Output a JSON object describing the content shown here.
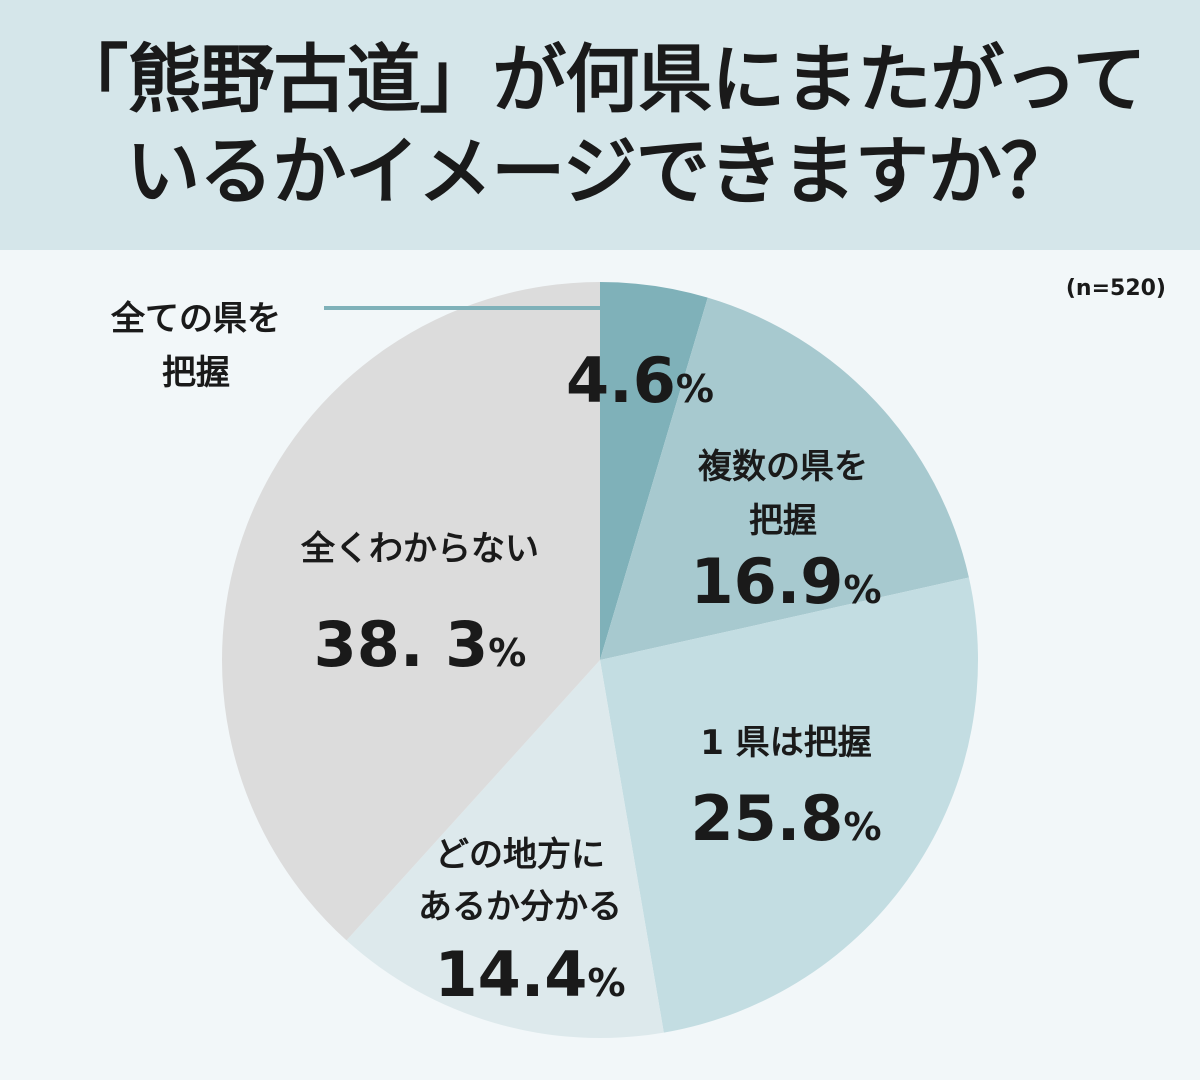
{
  "title": {
    "line1": "「熊野古道」が何県にまたがって",
    "line2": "いるかイメージできますか？"
  },
  "note": "(n=520)",
  "chart_data": {
    "type": "pie",
    "title": "「熊野古道」が何県にまたがっているかイメージできますか？",
    "sample": "(n=520)",
    "unit": "%",
    "slices": [
      {
        "label_lines": [
          "全ての県を",
          "把握"
        ],
        "value": 4.6,
        "value_text": "4.6",
        "color": "#7fb1b9"
      },
      {
        "label_lines": [
          "複数の県を",
          "把握"
        ],
        "value": 16.9,
        "value_text": "16.9",
        "color": "#a7c9cf"
      },
      {
        "label_lines": [
          "1 県は把握"
        ],
        "value": 25.8,
        "value_text": "25.8",
        "color": "#c3dde2"
      },
      {
        "label_lines": [
          "どの地方に",
          "あるか分かる"
        ],
        "value": 14.4,
        "value_text": "14.4",
        "color": "#dde9ec"
      },
      {
        "label_lines": [
          "全くわからない"
        ],
        "value": 38.3,
        "value_text": "38. 3",
        "color": "#dcdcdc"
      }
    ]
  }
}
